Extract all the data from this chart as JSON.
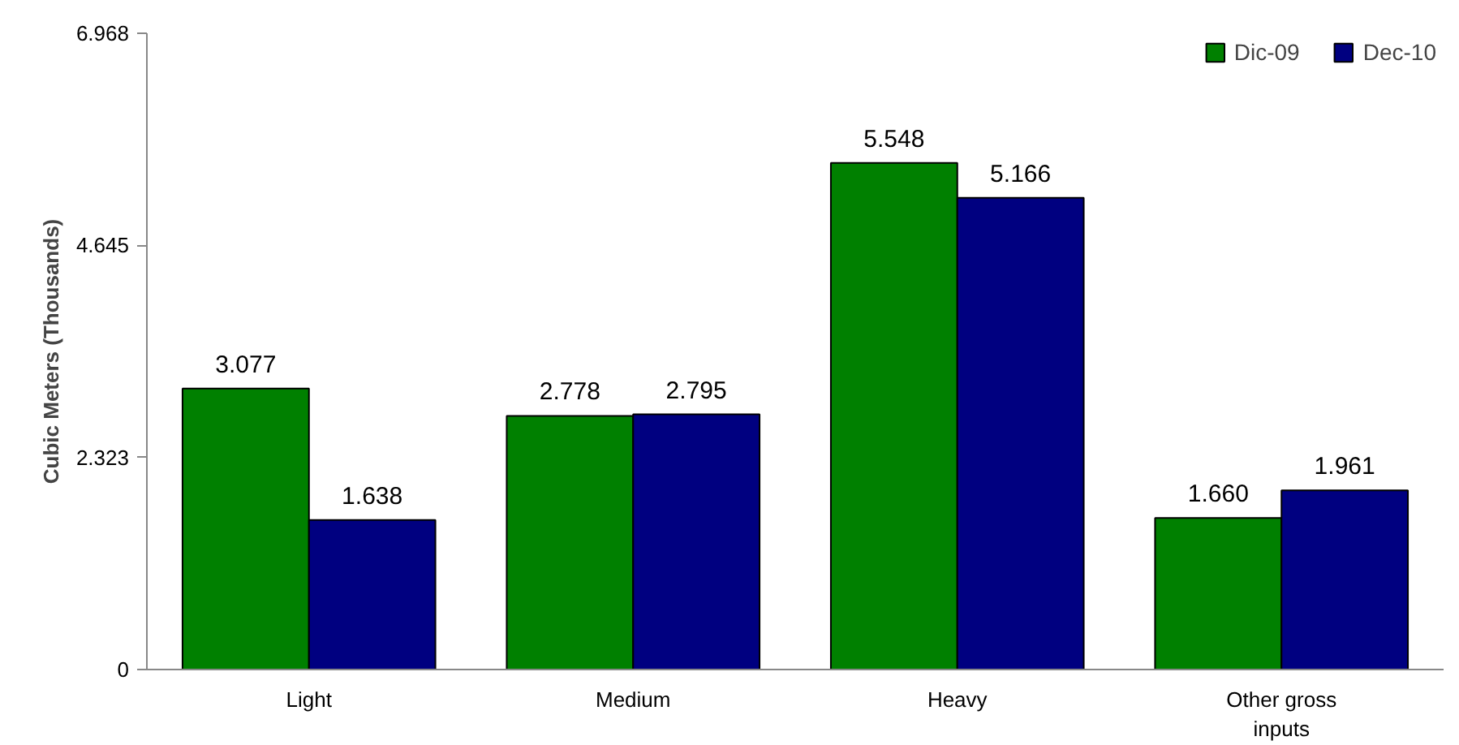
{
  "chart_data": {
    "type": "bar",
    "ylabel": "Cubic Meters (Thousands)",
    "categories": [
      "Light",
      "Medium",
      "Heavy",
      "Other gross inputs"
    ],
    "series": [
      {
        "name": "Dic-09",
        "color": "#008000",
        "values": [
          3.077,
          2.778,
          5.548,
          1.66
        ],
        "value_labels": [
          "3.077",
          "2.778",
          "5.548",
          "1.660"
        ]
      },
      {
        "name": "Dec-10",
        "color": "#000080",
        "values": [
          1.638,
          2.795,
          5.166,
          1.961
        ],
        "value_labels": [
          "1.638",
          "2.795",
          "5.166",
          "1.961"
        ]
      }
    ],
    "ylim": [
      0,
      6.968
    ],
    "yticks": [
      0,
      2.323,
      4.645,
      6.968
    ],
    "grid": false,
    "legend": "top right"
  }
}
